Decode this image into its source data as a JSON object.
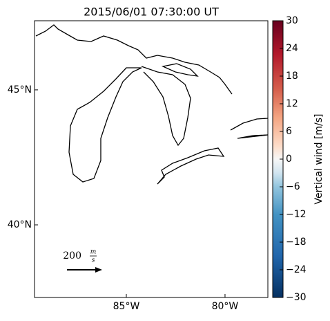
{
  "chart_data": {
    "type": "map",
    "title": "2015/06/01 07:30:00 UT",
    "xlim": [
      -89.65,
      -77.83
    ],
    "ylim": [
      37.31,
      47.56
    ],
    "xticks": [
      {
        "value": -85,
        "label": "85°W"
      },
      {
        "value": -80,
        "label": "80°W"
      }
    ],
    "yticks": [
      {
        "value": 45,
        "label": "45°N"
      },
      {
        "value": 40,
        "label": "40°N"
      }
    ],
    "colorbar": {
      "label": "Vertical wind [m/s]",
      "lim": [
        -30,
        30
      ],
      "ticks": [
        {
          "value": -30,
          "label": "−30"
        },
        {
          "value": -24,
          "label": "−24"
        },
        {
          "value": -18,
          "label": "−18"
        },
        {
          "value": -12,
          "label": "−12"
        },
        {
          "value": -6,
          "label": "−6"
        },
        0,
        6,
        12,
        18,
        24,
        30
      ]
    },
    "quiver_key": {
      "value": 200,
      "unit_top": "m",
      "unit_bottom": "s"
    }
  }
}
